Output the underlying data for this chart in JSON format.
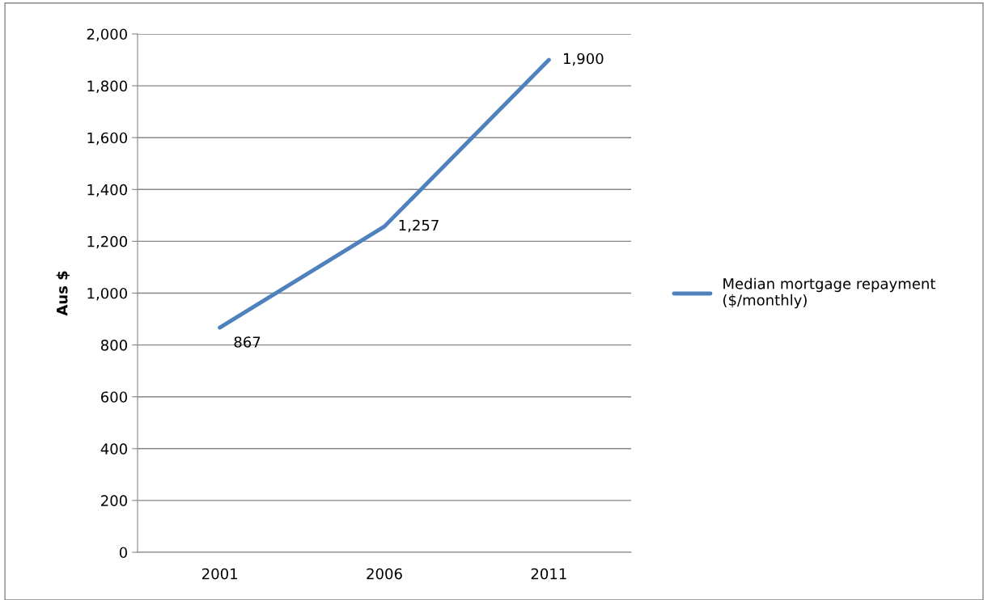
{
  "chart_data": {
    "type": "line",
    "ylabel": "Aus $",
    "categories": [
      "2001",
      "2006",
      "2011"
    ],
    "series": [
      {
        "name": "Median mortgage repayment\n($/monthly)",
        "color": "#4f81bd",
        "values": [
          867,
          1257,
          1900
        ]
      }
    ],
    "ylim": [
      0,
      2000
    ],
    "yticks": [
      0,
      200,
      400,
      600,
      800,
      {
        "value": 1000,
        "label": "1,000"
      },
      {
        "value": 1200,
        "label": "1,200"
      },
      {
        "value": 1400,
        "label": "1,400"
      },
      {
        "value": 1600,
        "label": "1,600"
      },
      {
        "value": 1800,
        "label": "1,800"
      },
      {
        "value": 2000,
        "label": "2,000"
      }
    ],
    "value_labels": [
      "867",
      "1,257",
      "1,900"
    ],
    "grid": "y",
    "legend": "right",
    "marker": "none",
    "line_style": "solid"
  }
}
